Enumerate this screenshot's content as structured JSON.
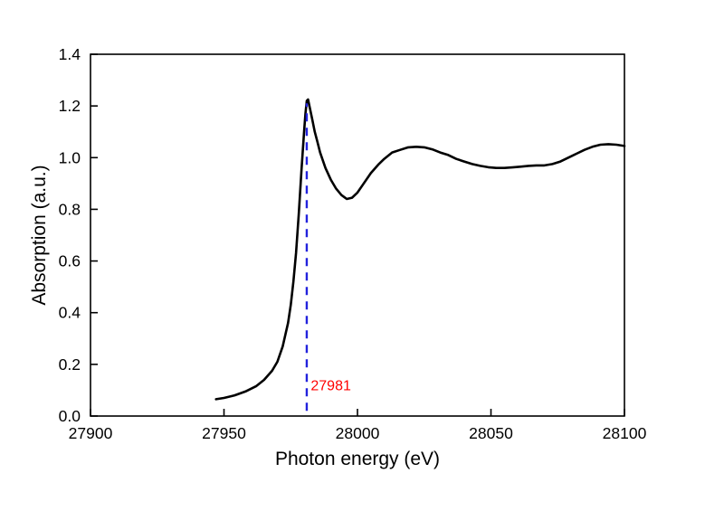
{
  "chart_data": {
    "type": "line",
    "title": "",
    "xlabel": "Photon energy (eV)",
    "ylabel": "Absorption (a.u.)",
    "xlim": [
      27900,
      28100
    ],
    "ylim": [
      0.0,
      1.4
    ],
    "xticks": [
      27900,
      27950,
      28000,
      28050,
      28100
    ],
    "yticks": [
      0.0,
      0.2,
      0.4,
      0.6,
      0.8,
      1.0,
      1.2,
      1.4
    ],
    "grid": false,
    "legend": false,
    "line_color": "#000000",
    "marker_color": "#2222dd",
    "annotation_color": "#ff0000",
    "series": [
      {
        "name": "absorption-spectrum",
        "color": "#000000",
        "points": [
          [
            27947,
            0.065
          ],
          [
            27950,
            0.07
          ],
          [
            27954,
            0.08
          ],
          [
            27958,
            0.095
          ],
          [
            27962,
            0.115
          ],
          [
            27965,
            0.14
          ],
          [
            27968,
            0.175
          ],
          [
            27970,
            0.21
          ],
          [
            27972,
            0.27
          ],
          [
            27974,
            0.36
          ],
          [
            27975,
            0.43
          ],
          [
            27976,
            0.52
          ],
          [
            27977,
            0.63
          ],
          [
            27978,
            0.78
          ],
          [
            27979,
            0.95
          ],
          [
            27980,
            1.1
          ],
          [
            27980.5,
            1.17
          ],
          [
            27981,
            1.22
          ],
          [
            27981.5,
            1.225
          ],
          [
            27982,
            1.2
          ],
          [
            27983,
            1.15
          ],
          [
            27984,
            1.1
          ],
          [
            27985,
            1.06
          ],
          [
            27986,
            1.02
          ],
          [
            27988,
            0.96
          ],
          [
            27990,
            0.915
          ],
          [
            27992,
            0.88
          ],
          [
            27994,
            0.855
          ],
          [
            27996,
            0.84
          ],
          [
            27998,
            0.845
          ],
          [
            28000,
            0.865
          ],
          [
            28002,
            0.895
          ],
          [
            28005,
            0.94
          ],
          [
            28008,
            0.975
          ],
          [
            28010,
            0.995
          ],
          [
            28013,
            1.02
          ],
          [
            28016,
            1.03
          ],
          [
            28019,
            1.04
          ],
          [
            28022,
            1.042
          ],
          [
            28025,
            1.04
          ],
          [
            28028,
            1.032
          ],
          [
            28031,
            1.02
          ],
          [
            28034,
            1.01
          ],
          [
            28037,
            0.995
          ],
          [
            28040,
            0.985
          ],
          [
            28043,
            0.975
          ],
          [
            28046,
            0.968
          ],
          [
            28049,
            0.963
          ],
          [
            28052,
            0.96
          ],
          [
            28055,
            0.96
          ],
          [
            28058,
            0.962
          ],
          [
            28061,
            0.965
          ],
          [
            28064,
            0.968
          ],
          [
            28067,
            0.97
          ],
          [
            28070,
            0.97
          ],
          [
            28073,
            0.975
          ],
          [
            28076,
            0.985
          ],
          [
            28079,
            1.0
          ],
          [
            28082,
            1.015
          ],
          [
            28085,
            1.03
          ],
          [
            28088,
            1.042
          ],
          [
            28091,
            1.05
          ],
          [
            28094,
            1.052
          ],
          [
            28097,
            1.05
          ],
          [
            28100,
            1.045
          ]
        ]
      }
    ],
    "annotations": [
      {
        "type": "vline",
        "x": 27981,
        "y0": 0.02,
        "y1": 1.21,
        "color": "#2222dd",
        "style": "dashed"
      },
      {
        "type": "text",
        "text": "27981",
        "x": 27982.5,
        "y": 0.1,
        "color": "#ff0000"
      }
    ]
  }
}
